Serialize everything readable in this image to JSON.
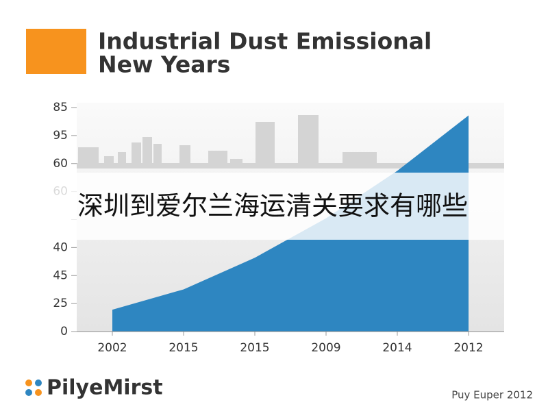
{
  "chart_data": {
    "type": "area",
    "title": [
      "Industrial Dust Emissional",
      "New Years"
    ],
    "categories": [
      "2002",
      "2015",
      "2015",
      "2009",
      "2014",
      "2012"
    ],
    "values": [
      8.3,
      16,
      28,
      43,
      61,
      82
    ],
    "color": "#2e86c1",
    "ylim": [
      0,
      85
    ],
    "ytick_labels": [
      "85",
      "95",
      "60",
      "60",
      null,
      "40",
      "45",
      "25",
      "0"
    ],
    "grid": true
  },
  "overlay": {
    "text": "深圳到爱尔兰海运清关要求有哪些"
  },
  "footer": {
    "logo": "PilyeMirst",
    "source": "Puy Euper 2012"
  }
}
